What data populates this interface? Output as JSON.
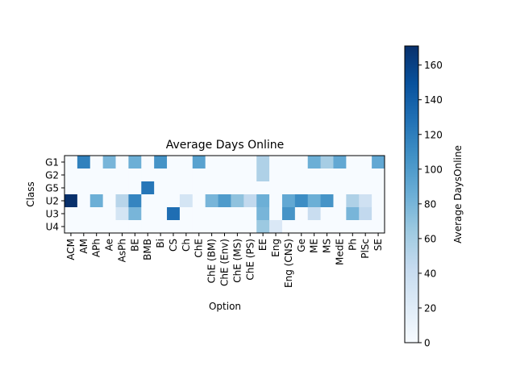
{
  "chart_data": {
    "type": "heatmap",
    "title": "Average Days Online",
    "xlabel": "Option",
    "ylabel": "Class",
    "colorbar_label": "Average DaysOnline",
    "colormap": "Blues",
    "colorbar_range": [
      0,
      171
    ],
    "colorbar_ticks": [
      0,
      20,
      40,
      60,
      80,
      100,
      120,
      140,
      160
    ],
    "x_categories": [
      "ACM",
      "AM",
      "APh",
      "Ae",
      "AsPh",
      "BE",
      "BMB",
      "Bi",
      "CS",
      "Ch",
      "ChE",
      "ChE (BM)",
      "ChE (Env)",
      "ChE (MS)",
      "ChE (PS)",
      "EE",
      "Eng",
      "Eng (CNS)",
      "Ge",
      "ME",
      "MS",
      "MedE",
      "Ph",
      "PlSc",
      "SE"
    ],
    "y_categories": [
      "G1",
      "G2",
      "G5",
      "U2",
      "U3",
      "U4"
    ],
    "values": [
      [
        0,
        118,
        0,
        80,
        0,
        85,
        0,
        105,
        0,
        0,
        95,
        0,
        0,
        0,
        0,
        55,
        0,
        0,
        0,
        85,
        60,
        90,
        0,
        0,
        90
      ],
      [
        0,
        0,
        0,
        0,
        0,
        0,
        0,
        0,
        0,
        0,
        0,
        0,
        0,
        0,
        0,
        55,
        0,
        0,
        0,
        0,
        0,
        0,
        0,
        0,
        0
      ],
      [
        0,
        0,
        0,
        0,
        0,
        0,
        125,
        0,
        0,
        0,
        0,
        0,
        0,
        0,
        0,
        0,
        0,
        0,
        0,
        0,
        0,
        0,
        0,
        0,
        0
      ],
      [
        171,
        0,
        85,
        0,
        50,
        115,
        0,
        0,
        0,
        30,
        0,
        80,
        100,
        70,
        45,
        85,
        0,
        90,
        110,
        85,
        105,
        0,
        55,
        35,
        0
      ],
      [
        0,
        0,
        0,
        0,
        30,
        80,
        0,
        0,
        130,
        0,
        0,
        0,
        0,
        0,
        0,
        80,
        0,
        105,
        0,
        40,
        0,
        0,
        80,
        45,
        0
      ],
      [
        0,
        0,
        0,
        0,
        0,
        0,
        0,
        0,
        0,
        0,
        0,
        0,
        0,
        0,
        0,
        65,
        25,
        0,
        0,
        0,
        0,
        0,
        0,
        0,
        0
      ]
    ]
  }
}
